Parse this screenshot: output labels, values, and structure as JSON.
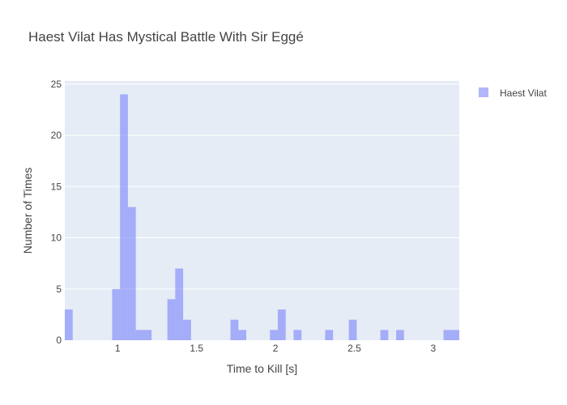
{
  "chart_data": {
    "type": "bar",
    "title": "Haest Vilat Has Mystical Battle With Sir Eggé",
    "xlabel": "Time to Kill [s]",
    "ylabel": "Number of Times",
    "xlim": [
      0.665,
      3.165
    ],
    "ylim": [
      0,
      25.3
    ],
    "bin_width": 0.05,
    "xticks": [
      {
        "value": 1,
        "label": "1"
      },
      {
        "value": 1.5,
        "label": "1.5"
      },
      {
        "value": 2,
        "label": "2"
      },
      {
        "value": 2.5,
        "label": "2.5"
      },
      {
        "value": 3,
        "label": "3"
      }
    ],
    "yticks": [
      {
        "value": 0,
        "label": "0"
      },
      {
        "value": 5,
        "label": "5"
      },
      {
        "value": 10,
        "label": "10"
      },
      {
        "value": 15,
        "label": "15"
      },
      {
        "value": 20,
        "label": "20"
      },
      {
        "value": 25,
        "label": "25"
      }
    ],
    "grid": true,
    "legend_position": "top-right",
    "series": [
      {
        "name": "Haest Vilat",
        "color": "#636efa",
        "opacity": 0.5,
        "bins": [
          {
            "x0": 0.665,
            "x1": 0.715,
            "count": 3
          },
          {
            "x0": 0.965,
            "x1": 1.015,
            "count": 5
          },
          {
            "x0": 1.015,
            "x1": 1.065,
            "count": 24
          },
          {
            "x0": 1.065,
            "x1": 1.115,
            "count": 13
          },
          {
            "x0": 1.115,
            "x1": 1.165,
            "count": 1
          },
          {
            "x0": 1.165,
            "x1": 1.215,
            "count": 1
          },
          {
            "x0": 1.315,
            "x1": 1.365,
            "count": 4
          },
          {
            "x0": 1.365,
            "x1": 1.415,
            "count": 7
          },
          {
            "x0": 1.415,
            "x1": 1.465,
            "count": 2
          },
          {
            "x0": 1.715,
            "x1": 1.765,
            "count": 2
          },
          {
            "x0": 1.765,
            "x1": 1.815,
            "count": 1
          },
          {
            "x0": 1.965,
            "x1": 2.015,
            "count": 1
          },
          {
            "x0": 2.015,
            "x1": 2.065,
            "count": 3
          },
          {
            "x0": 2.115,
            "x1": 2.165,
            "count": 1
          },
          {
            "x0": 2.315,
            "x1": 2.365,
            "count": 1
          },
          {
            "x0": 2.465,
            "x1": 2.515,
            "count": 2
          },
          {
            "x0": 2.665,
            "x1": 2.715,
            "count": 1
          },
          {
            "x0": 2.765,
            "x1": 2.815,
            "count": 1
          },
          {
            "x0": 3.065,
            "x1": 3.115,
            "count": 1
          },
          {
            "x0": 3.115,
            "x1": 3.165,
            "count": 1
          }
        ]
      }
    ],
    "plot_bg": "#e5ecf6",
    "grid_color": "#ffffff",
    "text_color": "#444444"
  }
}
